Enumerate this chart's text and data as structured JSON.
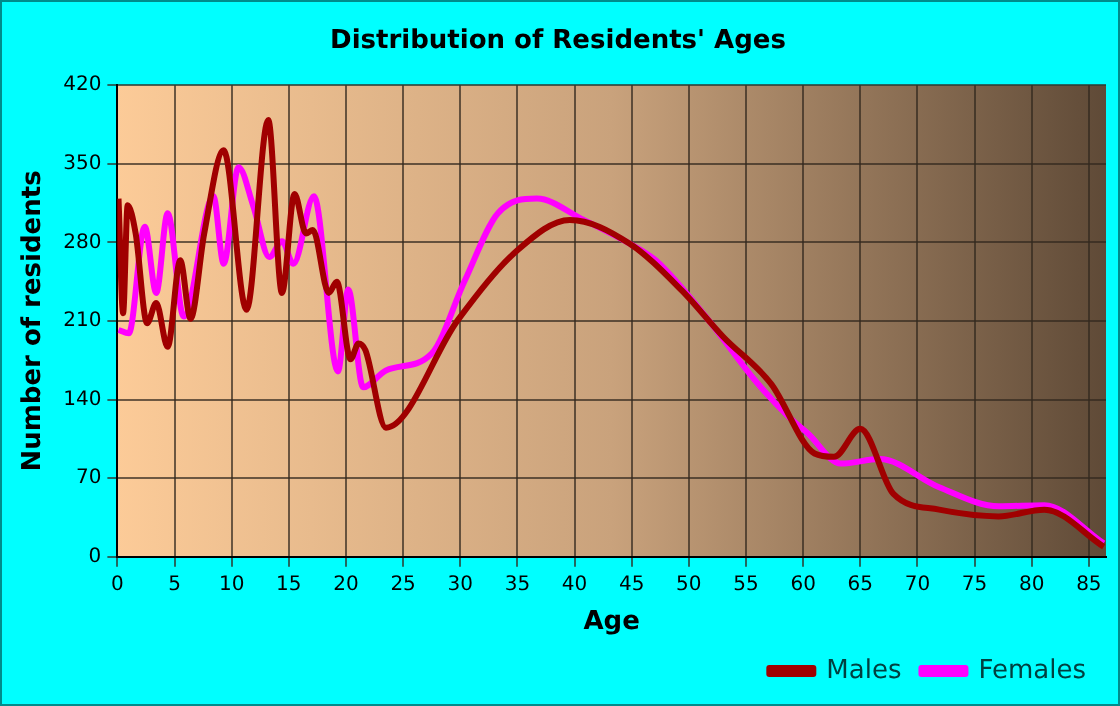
{
  "chart_data": {
    "type": "line",
    "title": "Distribution of Residents' Ages",
    "xlabel": "Age",
    "ylabel": "Number of residents",
    "xlim": [
      0,
      86.5
    ],
    "xticks": [
      0,
      5,
      10,
      15,
      20,
      25,
      30,
      35,
      40,
      45,
      50,
      55,
      60,
      65,
      70,
      75,
      80,
      85
    ],
    "ylim": [
      0,
      420
    ],
    "yticks": [
      0,
      70,
      140,
      210,
      280,
      350,
      420
    ],
    "grid": true,
    "legend": "bottom right",
    "marker": "none",
    "line_style": "solid",
    "series": [
      {
        "name": "Males",
        "color": "#a00000",
        "x": [
          0.1,
          0.5,
          0.9,
          1.6,
          2.6,
          3.4,
          4.4,
          5.5,
          6.4,
          7.6,
          9.3,
          11.3,
          13.2,
          14.4,
          15.5,
          16.5,
          17.1,
          18.5,
          19.2,
          20.4,
          21.1,
          21.7,
          23.5,
          29.8,
          35,
          39.6,
          44.8,
          49.4,
          53,
          57.2,
          61,
          62.7,
          65,
          67.9,
          71.9,
          77.1,
          81.1,
          86.3
        ],
        "values": [
          319,
          217,
          313,
          288,
          208,
          226,
          187,
          264,
          212,
          288,
          362,
          220,
          389,
          235,
          323,
          288,
          291,
          235,
          245,
          176,
          190,
          184,
          115,
          211,
          273,
          300,
          279,
          237,
          196,
          154,
          92,
          89,
          114,
          56,
          42,
          36,
          42,
          9
        ]
      },
      {
        "name": "Females",
        "color": "#ff00ff",
        "x": [
          0.1,
          1,
          2.4,
          3.4,
          4.4,
          5.8,
          8.4,
          9.3,
          10.6,
          11.9,
          13.3,
          14.4,
          15.4,
          17.2,
          19.3,
          20.2,
          21.5,
          23.5,
          27.5,
          30.4,
          33.3,
          36.7,
          40.8,
          44.8,
          47.1,
          51.7,
          55.8,
          58.7,
          60.4,
          63.3,
          66.7,
          71.9,
          77.1,
          81.1,
          86.3
        ],
        "values": [
          202,
          199,
          294,
          235,
          306,
          214,
          321,
          261,
          347,
          312,
          267,
          281,
          261,
          321,
          165,
          238,
          151,
          166,
          181,
          246,
          306,
          319,
          300,
          279,
          264,
          211,
          157,
          125,
          110,
          83,
          87,
          62,
          45,
          46,
          12
        ]
      }
    ]
  }
}
